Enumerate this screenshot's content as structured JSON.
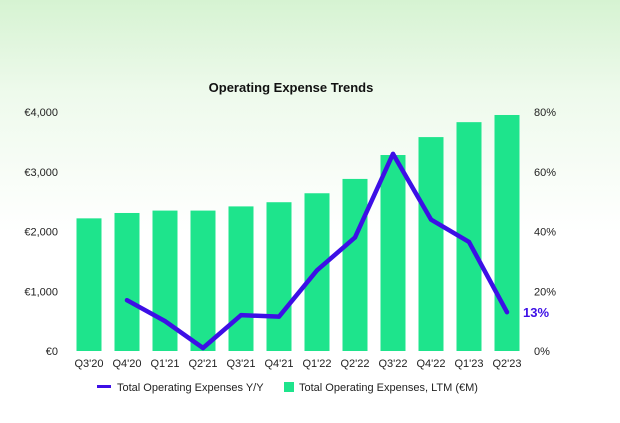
{
  "chart_data": {
    "type": "bar",
    "title": "Operating Expense Trends",
    "categories": [
      "Q3'20",
      "Q4'20",
      "Q1'21",
      "Q2'21",
      "Q3'21",
      "Q4'21",
      "Q1'22",
      "Q2'22",
      "Q3'22",
      "Q4'22",
      "Q1'23",
      "Q2'23"
    ],
    "series": [
      {
        "name": "Total Operating Expenses, LTM (€M)",
        "type": "bar",
        "axis": "left",
        "color": "#1ee48c",
        "values": [
          2220,
          2310,
          2350,
          2350,
          2420,
          2490,
          2640,
          2880,
          3280,
          3580,
          3830,
          3950
        ]
      },
      {
        "name": "Total Operating Expenses Y/Y",
        "type": "line",
        "axis": "right",
        "color": "#3d0fe6",
        "values": [
          null,
          17,
          10,
          1,
          12,
          11.5,
          27,
          38,
          66,
          44,
          36.5,
          13
        ]
      }
    ],
    "y_left": {
      "min": 0,
      "max": 4000,
      "ticks": [
        "€0",
        "€1,000",
        "€2,000",
        "€3,000",
        "€4,000"
      ]
    },
    "y_right": {
      "min": 0,
      "max": 80,
      "ticks": [
        "0%",
        "20%",
        "40%",
        "60%",
        "80%"
      ]
    },
    "end_label": "13%",
    "legend_position": "bottom",
    "grid": false
  }
}
